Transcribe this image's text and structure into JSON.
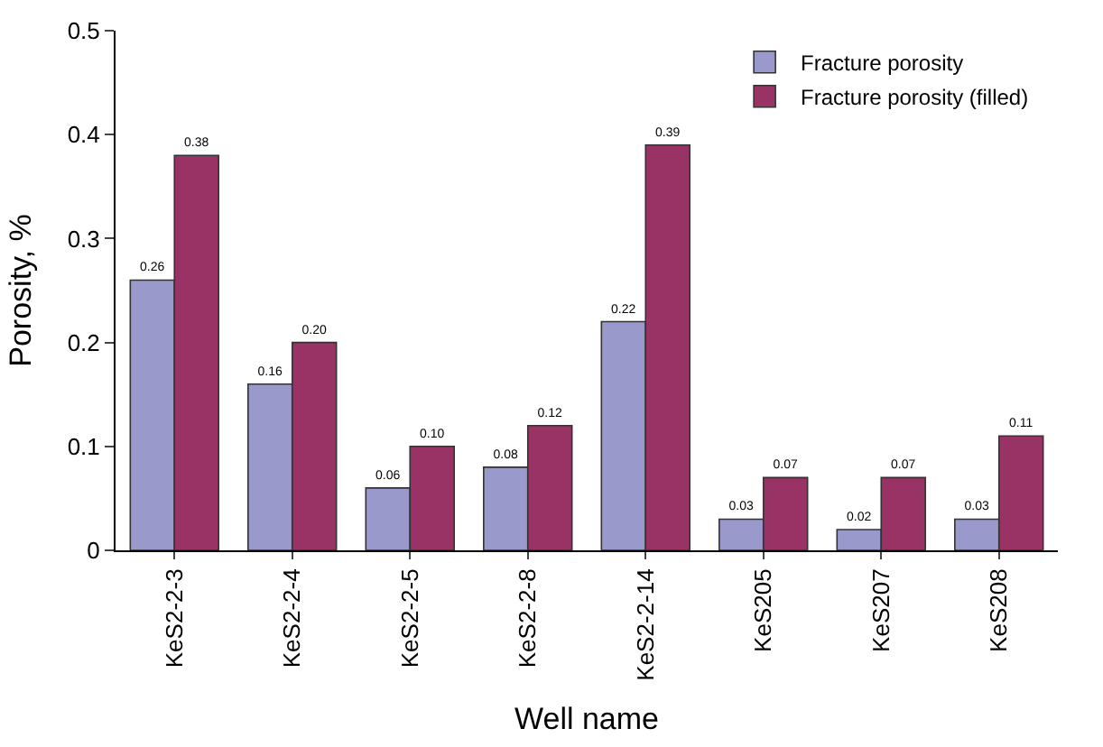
{
  "chart_data": {
    "type": "bar",
    "xlabel": "Well name",
    "ylabel": "Porosity, %",
    "categories": [
      "KeS2-2-3",
      "KeS2-2-4",
      "KeS2-2-5",
      "KeS2-2-8",
      "KeS2-2-14",
      "KeS205",
      "KeS207",
      "KeS208"
    ],
    "series": [
      {
        "name": "Fracture porosity",
        "color": "#9999cc",
        "values": [
          0.26,
          0.16,
          0.06,
          0.08,
          0.22,
          0.03,
          0.02,
          0.03
        ],
        "value_labels": [
          "0.26",
          "0.16",
          "0.06",
          "0.08",
          "0.22",
          "0.03",
          "0.02",
          "0.03"
        ]
      },
      {
        "name": "Fracture porosity (filled)",
        "color": "#993366",
        "values": [
          0.38,
          0.2,
          0.1,
          0.12,
          0.39,
          0.07,
          0.07,
          0.11
        ],
        "value_labels": [
          "0.38",
          "0.20",
          "0.10",
          "0.12",
          "0.39",
          "0.07",
          "0.07",
          "0.11"
        ]
      }
    ],
    "ylim": [
      0,
      0.5
    ],
    "yticks": [
      0,
      0.1,
      0.2,
      0.3,
      0.4,
      0.5
    ],
    "legend": "top right"
  }
}
